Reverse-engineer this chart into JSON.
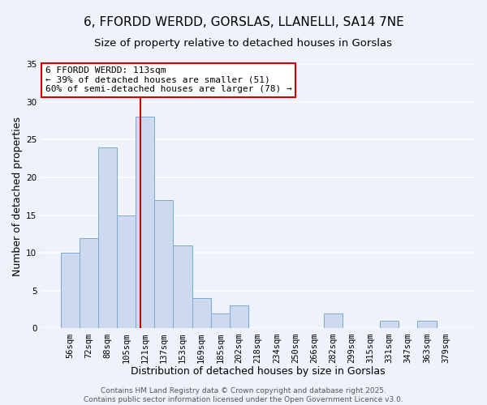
{
  "title": "6, FFORDD WERDD, GORSLAS, LLANELLI, SA14 7NE",
  "subtitle": "Size of property relative to detached houses in Gorslas",
  "xlabel": "Distribution of detached houses by size in Gorslas",
  "ylabel": "Number of detached properties",
  "categories": [
    "56sqm",
    "72sqm",
    "88sqm",
    "105sqm",
    "121sqm",
    "137sqm",
    "153sqm",
    "169sqm",
    "185sqm",
    "202sqm",
    "218sqm",
    "234sqm",
    "250sqm",
    "266sqm",
    "282sqm",
    "299sqm",
    "315sqm",
    "331sqm",
    "347sqm",
    "363sqm",
    "379sqm"
  ],
  "values": [
    10,
    12,
    24,
    15,
    28,
    17,
    11,
    4,
    2,
    3,
    0,
    0,
    0,
    0,
    2,
    0,
    0,
    1,
    0,
    1,
    0
  ],
  "bar_color": "#ccd9ee",
  "bar_edge_color": "#7aabcf",
  "bar_width": 1.0,
  "red_line_x": 3.75,
  "red_line_color": "#cc0000",
  "ylim": [
    0,
    35
  ],
  "yticks": [
    0,
    5,
    10,
    15,
    20,
    25,
    30,
    35
  ],
  "annotation_title": "6 FFORDD WERDD: 113sqm",
  "annotation_line1": "← 39% of detached houses are smaller (51)",
  "annotation_line2": "60% of semi-detached houses are larger (78) →",
  "annotation_box_color": "#ffffff",
  "annotation_box_edge": "#cc0000",
  "footer_line1": "Contains HM Land Registry data © Crown copyright and database right 2025.",
  "footer_line2": "Contains public sector information licensed under the Open Government Licence v3.0.",
  "background_color": "#eef2fb",
  "grid_color": "#ffffff",
  "title_fontsize": 11,
  "subtitle_fontsize": 9.5,
  "axis_label_fontsize": 9,
  "tick_fontsize": 7.5,
  "annotation_fontsize": 8,
  "footer_fontsize": 6.5
}
